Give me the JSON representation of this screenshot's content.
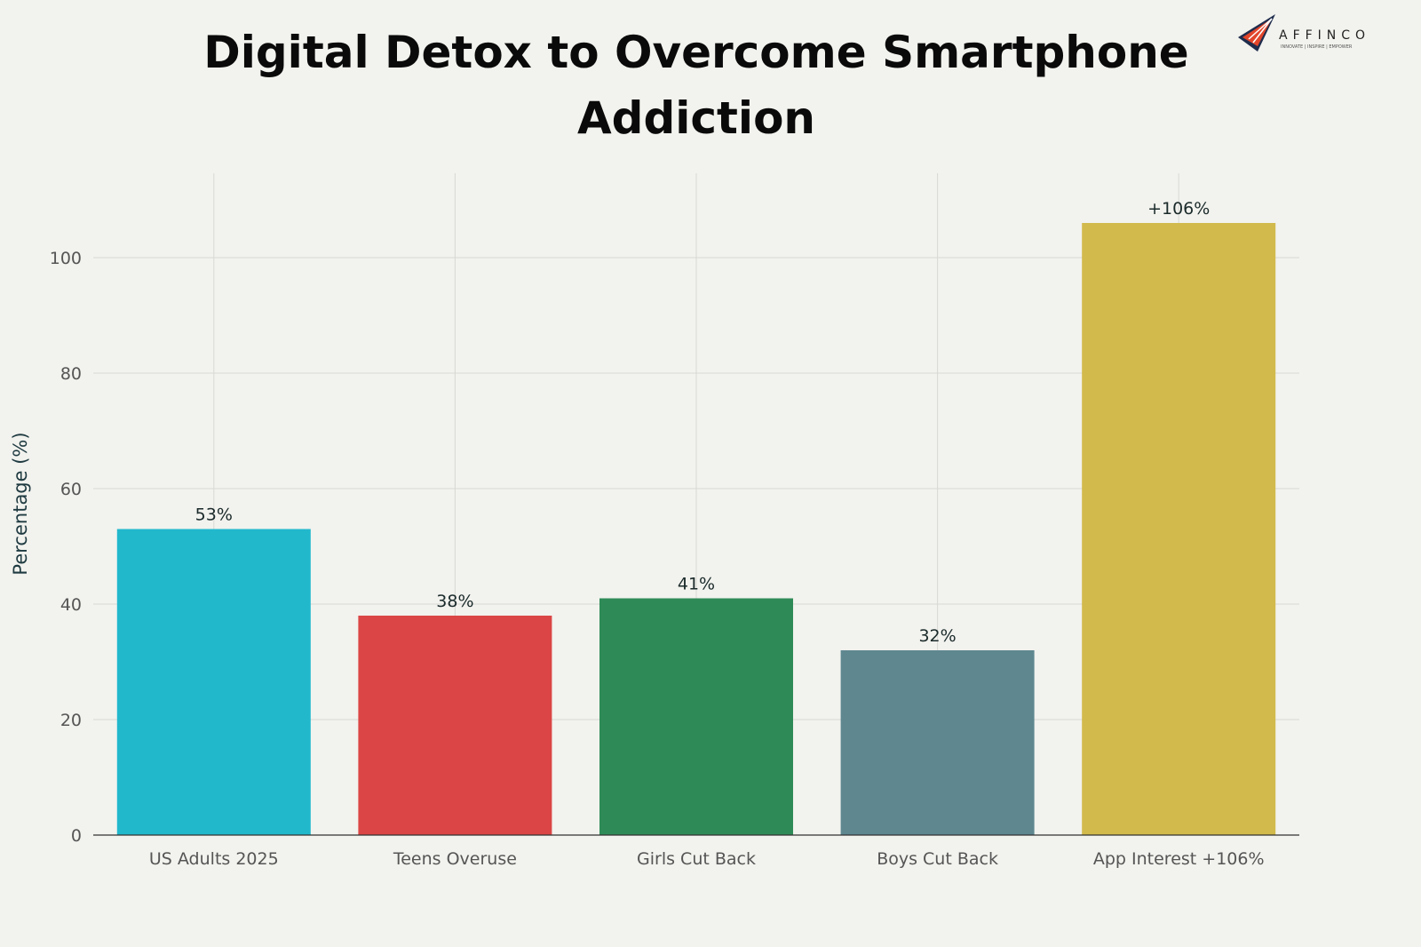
{
  "chart_data": {
    "type": "bar",
    "title_lines": [
      "Digital Detox to Overcome Smartphone",
      "Addiction"
    ],
    "xlabel": "",
    "ylabel": "Percentage (%)",
    "categories": [
      "US Adults 2025",
      "Teens Overuse",
      "Girls Cut Back",
      "Boys Cut Back",
      "App Interest +106%"
    ],
    "values": [
      53,
      38,
      41,
      32,
      106
    ],
    "data_labels": [
      "53%",
      "38%",
      "41%",
      "32%",
      "+106%"
    ],
    "colors": [
      "#21b8cc",
      "#db4545",
      "#2e8b57",
      "#5e8790",
      "#d2ba4c"
    ],
    "yticks": [
      0,
      20,
      40,
      60,
      80,
      100
    ],
    "ylim": [
      0,
      115
    ],
    "grid": true,
    "legend": "none"
  },
  "logo": {
    "name": "AFFINCO",
    "tagline": "INNOVATE | INSPIRE | EMPOWER"
  }
}
